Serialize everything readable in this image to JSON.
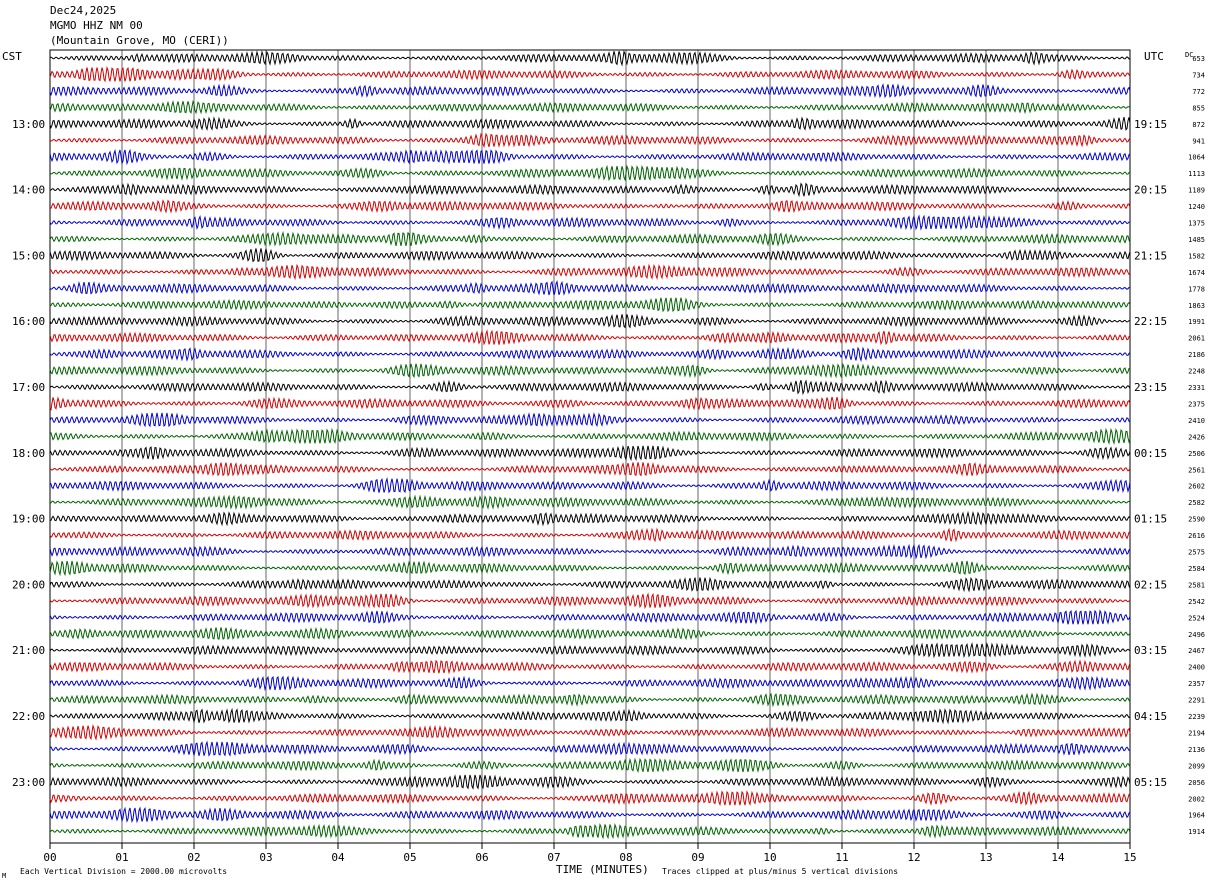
{
  "header": {
    "date": "Dec24,2025",
    "station": "MGMO HHZ NM 00",
    "location": "(Mountain Grove, MO (CERI))"
  },
  "labels": {
    "left_tz": "CST",
    "right_tz": "UTC",
    "dc_header": "DC",
    "x_axis_title": "TIME (MINUTES)",
    "scale_note": "Each Vertical Division = 2000.00 microvolts",
    "clip_note": "Traces clipped at plus/minus 5 vertical divisions",
    "corner_mark": "M"
  },
  "colors": {
    "trace_cycle": [
      "#000000",
      "#d40000",
      "#0000cc",
      "#006400"
    ],
    "grid": "#000000",
    "background": "#ffffff"
  },
  "chart_data": {
    "type": "line",
    "x_ticks": [
      "00",
      "01",
      "02",
      "03",
      "04",
      "05",
      "06",
      "07",
      "08",
      "09",
      "10",
      "11",
      "12",
      "13",
      "14",
      "15"
    ],
    "xlim": [
      0,
      15
    ],
    "traces_per_hour": 4,
    "left_hour_labels": [
      "13:00",
      "14:00",
      "15:00",
      "16:00",
      "17:00",
      "18:00",
      "19:00",
      "20:00",
      "21:00",
      "22:00",
      "23:00"
    ],
    "right_hour_labels": [
      "19:15",
      "20:15",
      "21:15",
      "22:15",
      "23:15",
      "00:15",
      "01:15",
      "02:15",
      "03:15",
      "04:15",
      "05:15"
    ],
    "dc_offsets": [
      "653",
      "734",
      "772",
      "855",
      "872",
      "941",
      "1064",
      "1113",
      "1189",
      "1240",
      "1375",
      "1485",
      "1582",
      "1674",
      "1778",
      "1863",
      "1991",
      "2061",
      "2186",
      "2248",
      "2331",
      "2375",
      "2410",
      "2426",
      "2506",
      "2561",
      "2602",
      "2582",
      "2590",
      "2616",
      "2575",
      "2584",
      "2581",
      "2542",
      "2524",
      "2496",
      "2467",
      "2400",
      "2357",
      "2291",
      "2239",
      "2194",
      "2136",
      "2099",
      "2056",
      "2002",
      "1964",
      "1914"
    ]
  }
}
